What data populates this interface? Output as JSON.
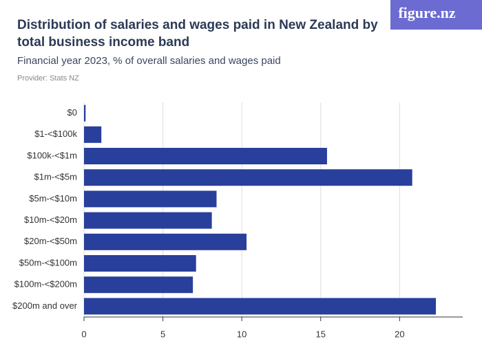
{
  "logo": "figure.nz",
  "chart_data": {
    "type": "hbar",
    "title": "Distribution of salaries and wages paid in New Zealand by total business income band",
    "subtitle": "Financial year 2023, % of overall salaries and wages paid",
    "provider": "Provider: Stats NZ",
    "categories": [
      "$0",
      "$1-<$100k",
      "$100k-<$1m",
      "$1m-<$5m",
      "$5m-<$10m",
      "$10m-<$20m",
      "$20m-<$50m",
      "$50m-<$100m",
      "$100m-<$200m",
      "$200m and over"
    ],
    "values": [
      0.1,
      1.1,
      15.4,
      20.8,
      8.4,
      8.1,
      10.3,
      7.1,
      6.9,
      22.3
    ],
    "color": "#283f9b",
    "xlim": [
      0,
      24
    ],
    "xticks": [
      0,
      5,
      10,
      15,
      20
    ],
    "grid": true
  }
}
